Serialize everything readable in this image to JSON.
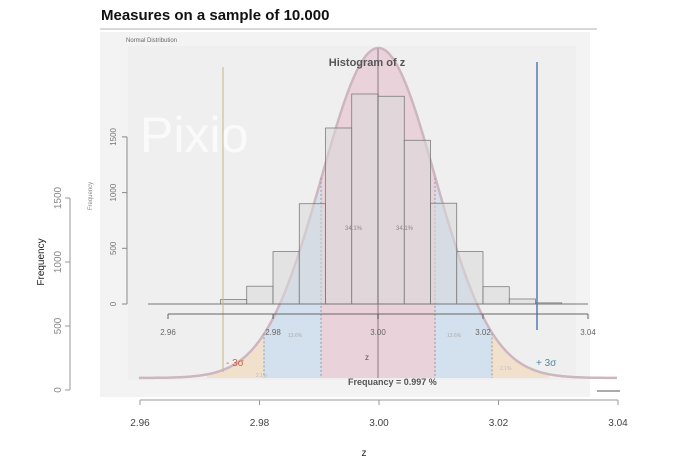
{
  "header": {
    "title": "Measures on a sample of 10.000"
  },
  "panel_caption": "Normal Distribution",
  "watermark": "Pixio",
  "colors": {
    "bar_fill": "#d9d9d9",
    "bar_stroke": "#6e6e6e",
    "one_sigma": "#e8c8d4",
    "two_sigma": "#c9dcef",
    "three_sigma": "#f1dcc0",
    "minus_line": "#c8b48a",
    "plus_line": "#5a78b4",
    "minus_label": "#d0604a",
    "plus_label": "#4a8aa8"
  },
  "annotations": {
    "one_sigma_left": "34.1%",
    "one_sigma_right": "34.1%",
    "two_sigma_left": "13.6%",
    "two_sigma_right": "13.6%",
    "three_sigma_left": "2.1%",
    "three_sigma_right": "2.1%",
    "minus_3sigma": "- 3σ",
    "plus_3sigma": "+ 3σ",
    "frequency_note": "Frequancy = 0.997 %"
  },
  "chart_data": [
    {
      "type": "bar",
      "title": "Histogram of z",
      "xlabel": "z",
      "ylabel": "Frequency",
      "bin_width": 0.005,
      "bin_starts": [
        2.97,
        2.975,
        2.98,
        2.985,
        2.99,
        2.995,
        3.0,
        3.005,
        3.01,
        3.015,
        3.02,
        3.025,
        3.03
      ],
      "values": [
        40,
        160,
        470,
        900,
        1580,
        1885,
        1865,
        1470,
        905,
        470,
        155,
        45,
        10
      ],
      "xlim": [
        2.96,
        3.04
      ],
      "ylim": [
        0,
        1500
      ],
      "x_ticks": [
        "2.96",
        "2.98",
        "3.00",
        "3.02",
        "3.04"
      ],
      "y_ticks": [
        "0",
        "500",
        "1000",
        "1500"
      ],
      "grid": false
    },
    {
      "type": "line",
      "title": "",
      "xlabel": "z",
      "ylabel": "Frequency",
      "xlim": [
        2.96,
        3.04
      ],
      "ylim": [
        0,
        1500
      ],
      "x_ticks": [
        "2.96",
        "2.98",
        "3.00",
        "3.02",
        "3.04"
      ],
      "y_ticks": [
        "0",
        "500",
        "1000",
        "1500"
      ]
    }
  ]
}
